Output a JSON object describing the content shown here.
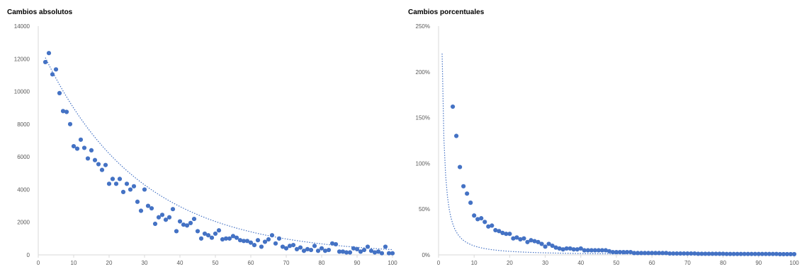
{
  "chart_data": [
    {
      "type": "scatter",
      "title": "Cambios absolutos",
      "xlabel": "",
      "ylabel": "",
      "xlim": [
        0,
        100
      ],
      "ylim": [
        0,
        14000
      ],
      "xticks": [
        0,
        10,
        20,
        30,
        40,
        50,
        60,
        70,
        80,
        90,
        100
      ],
      "yticks": [
        0,
        2000,
        4000,
        6000,
        8000,
        10000,
        12000,
        14000
      ],
      "tick_labels_x": [
        "0",
        "10",
        "20",
        "30",
        "40",
        "50",
        "60",
        "70",
        "80",
        "90",
        "100"
      ],
      "tick_labels_y": [
        "0",
        "2000",
        "4000",
        "6000",
        "8000",
        "10000",
        "12000",
        "14000"
      ],
      "grid": false,
      "marker_color": "#4472C4",
      "trendline": {
        "style": "dotted",
        "color": "#4472C4",
        "type": "exponential",
        "y0": 13000,
        "rate": 0.037
      },
      "x": [
        2,
        3,
        4,
        5,
        6,
        7,
        8,
        9,
        10,
        11,
        12,
        13,
        14,
        15,
        16,
        17,
        18,
        19,
        20,
        21,
        22,
        23,
        24,
        25,
        26,
        27,
        28,
        29,
        30,
        31,
        32,
        33,
        34,
        35,
        36,
        37,
        38,
        39,
        40,
        41,
        42,
        43,
        44,
        45,
        46,
        47,
        48,
        49,
        50,
        51,
        52,
        53,
        54,
        55,
        56,
        57,
        58,
        59,
        60,
        61,
        62,
        63,
        64,
        65,
        66,
        67,
        68,
        69,
        70,
        71,
        72,
        73,
        74,
        75,
        76,
        77,
        78,
        79,
        80,
        81,
        82,
        83,
        84,
        85,
        86,
        87,
        88,
        89,
        90,
        91,
        92,
        93,
        94,
        95,
        96,
        97,
        98,
        99,
        100
      ],
      "y": [
        11800,
        12350,
        11050,
        11350,
        9900,
        8800,
        8750,
        8000,
        6650,
        6500,
        7050,
        6550,
        5900,
        6400,
        5800,
        5550,
        5200,
        5500,
        4350,
        4650,
        4350,
        4650,
        3850,
        4350,
        4000,
        4200,
        3250,
        2700,
        4000,
        3000,
        2850,
        1900,
        2300,
        2450,
        2150,
        2300,
        2800,
        1450,
        2050,
        1850,
        1800,
        1950,
        2200,
        1450,
        1000,
        1300,
        1200,
        1050,
        1300,
        1500,
        950,
        1000,
        1000,
        1150,
        1050,
        900,
        850,
        850,
        750,
        600,
        900,
        500,
        800,
        950,
        1200,
        700,
        1000,
        500,
        400,
        550,
        600,
        350,
        450,
        250,
        350,
        300,
        550,
        250,
        400,
        250,
        300,
        700,
        650,
        200,
        200,
        150,
        150,
        400,
        350,
        200,
        300,
        500,
        250,
        150,
        200,
        100,
        500,
        100,
        100
      ]
    },
    {
      "type": "scatter",
      "title": "Cambios porcentuales",
      "xlabel": "",
      "ylabel": "",
      "xlim": [
        0,
        100
      ],
      "ylim": [
        0,
        2.5
      ],
      "xticks": [
        0,
        10,
        20,
        30,
        40,
        50,
        60,
        70,
        80,
        90,
        100
      ],
      "yticks": [
        0,
        0.5,
        1.0,
        1.5,
        2.0,
        2.5
      ],
      "tick_labels_x": [
        "0",
        "10",
        "20",
        "30",
        "40",
        "50",
        "60",
        "70",
        "80",
        "90",
        "100"
      ],
      "tick_labels_y": [
        "0%",
        "50%",
        "100%",
        "150%",
        "200%",
        "250%"
      ],
      "grid": false,
      "marker_color": "#4472C4",
      "trendline": {
        "style": "dotted",
        "color": "#4472C4",
        "type": "power"
      },
      "x": [
        4,
        5,
        6,
        7,
        8,
        9,
        10,
        11,
        12,
        13,
        14,
        15,
        16,
        17,
        18,
        19,
        20,
        21,
        22,
        23,
        24,
        25,
        26,
        27,
        28,
        29,
        30,
        31,
        32,
        33,
        34,
        35,
        36,
        37,
        38,
        39,
        40,
        41,
        42,
        43,
        44,
        45,
        46,
        47,
        48,
        49,
        50,
        51,
        52,
        53,
        54,
        55,
        56,
        57,
        58,
        59,
        60,
        61,
        62,
        63,
        64,
        65,
        66,
        67,
        68,
        69,
        70,
        71,
        72,
        73,
        74,
        75,
        76,
        77,
        78,
        79,
        80,
        81,
        82,
        83,
        84,
        85,
        86,
        87,
        88,
        89,
        90,
        91,
        92,
        93,
        94,
        95,
        96,
        97,
        98,
        99,
        100
      ],
      "y": [
        1.62,
        1.3,
        0.96,
        0.75,
        0.67,
        0.57,
        0.43,
        0.39,
        0.4,
        0.36,
        0.31,
        0.32,
        0.27,
        0.26,
        0.24,
        0.23,
        0.23,
        0.18,
        0.19,
        0.17,
        0.18,
        0.14,
        0.16,
        0.15,
        0.14,
        0.12,
        0.09,
        0.12,
        0.1,
        0.08,
        0.07,
        0.06,
        0.07,
        0.07,
        0.06,
        0.06,
        0.07,
        0.05,
        0.05,
        0.05,
        0.05,
        0.05,
        0.05,
        0.05,
        0.04,
        0.03,
        0.03,
        0.03,
        0.03,
        0.03,
        0.03,
        0.02,
        0.02,
        0.02,
        0.02,
        0.02,
        0.02,
        0.02,
        0.02,
        0.02,
        0.02,
        0.015,
        0.015,
        0.015,
        0.015,
        0.015,
        0.015,
        0.015,
        0.015,
        0.012,
        0.012,
        0.012,
        0.012,
        0.012,
        0.012,
        0.012,
        0.012,
        0.01,
        0.01,
        0.01,
        0.01,
        0.01,
        0.01,
        0.01,
        0.01,
        0.01,
        0.01,
        0.01,
        0.01,
        0.01,
        0.01,
        0.01,
        0.008,
        0.008,
        0.008,
        0.008,
        0.008
      ]
    }
  ]
}
